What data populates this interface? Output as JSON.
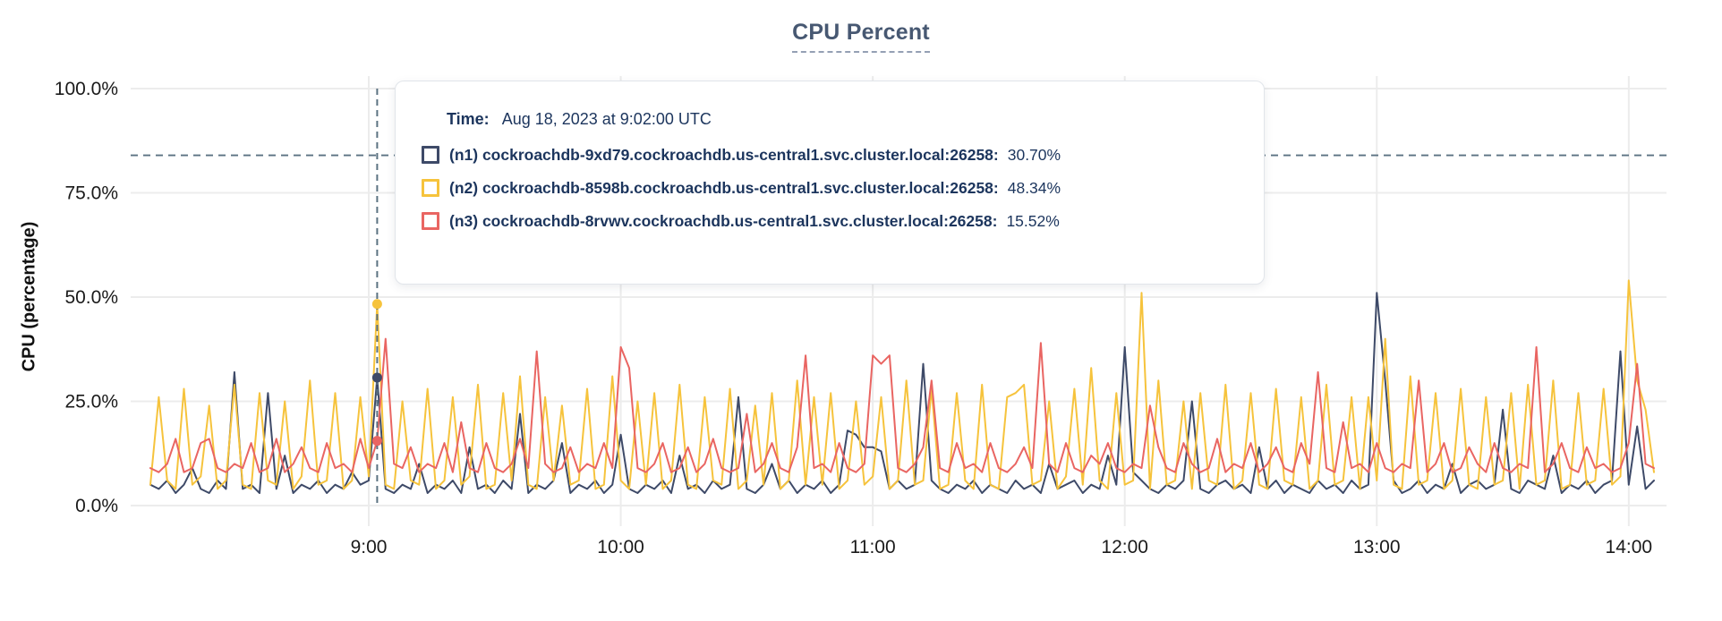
{
  "page": {
    "title": "CPU Percent"
  },
  "tooltip": {
    "time_label": "Time:",
    "time_value": "Aug 18, 2023 at 9:02:00 UTC",
    "rows": [
      {
        "label": "(n1) cockroachdb-9xd79.cockroachdb.us-central1.svc.cluster.local:26258:",
        "value": "30.70%"
      },
      {
        "label": "(n2) cockroachdb-8598b.cockroachdb.us-central1.svc.cluster.local:26258:",
        "value": "48.34%"
      },
      {
        "label": "(n3) cockroachdb-8rvwv.cockroachdb.us-central1.svc.cluster.local:26258:",
        "value": "15.52%"
      }
    ]
  },
  "colors": {
    "title": "#475872",
    "tooltip_text": "#1c355d",
    "grid": "#ececec",
    "dashed_guides": "#5b7282",
    "axis_text": "#1a1a1a",
    "series_n1": "#3e4a68",
    "series_n2": "#f6c33c",
    "series_n3": "#e96562"
  },
  "chart_data": {
    "type": "line",
    "title": "CPU Percent",
    "xlabel": "",
    "ylabel": "CPU (percentage)",
    "ylim": [
      0,
      100
    ],
    "grid": true,
    "legend_position": "tooltip-overlay",
    "yticks": [
      {
        "value": 0,
        "label": "0.0%"
      },
      {
        "value": 25,
        "label": "25.0%"
      },
      {
        "value": 50,
        "label": "50.0%"
      },
      {
        "value": 75,
        "label": "75.0%"
      },
      {
        "value": 100,
        "label": "100.0%"
      }
    ],
    "xticks": [
      {
        "minute": 540,
        "label": "9:00"
      },
      {
        "minute": 600,
        "label": "10:00"
      },
      {
        "minute": 660,
        "label": "11:00"
      },
      {
        "minute": 720,
        "label": "12:00"
      },
      {
        "minute": 780,
        "label": "13:00"
      },
      {
        "minute": 840,
        "label": "14:00"
      }
    ],
    "xlim_minutes": [
      488,
      846
    ],
    "x_start_minute": 488,
    "x_step_minutes": 2,
    "threshold_percent": 84,
    "hover": {
      "minute": 542,
      "time": "Aug 18, 2023 at 9:02:00 UTC",
      "values": [
        30.7,
        48.34,
        15.52
      ]
    },
    "series": [
      {
        "name": "(n1) cockroachdb-9xd79.cockroachdb.us-central1.svc.cluster.local:26258",
        "color": "#3e4a68",
        "values": [
          5,
          4,
          6,
          3,
          5,
          9,
          4,
          3,
          6,
          4,
          32,
          4,
          5,
          3,
          27,
          4,
          12,
          3,
          5,
          4,
          6,
          3,
          5,
          4,
          8,
          5,
          6,
          30.7,
          4,
          3,
          5,
          4,
          10,
          3,
          5,
          4,
          6,
          3,
          14,
          4,
          5,
          3,
          6,
          4,
          22,
          3,
          5,
          4,
          6,
          15,
          3,
          5,
          4,
          6,
          3,
          5,
          17,
          4,
          3,
          5,
          4,
          6,
          3,
          12,
          4,
          5,
          3,
          6,
          4,
          5,
          26,
          4,
          3,
          5,
          10,
          4,
          6,
          3,
          5,
          4,
          6,
          3,
          5,
          18,
          17,
          14,
          14,
          13,
          4,
          6,
          4,
          5,
          34,
          6,
          4,
          3,
          5,
          4,
          6,
          3,
          5,
          4,
          3,
          6,
          4,
          5,
          3,
          10,
          4,
          5,
          6,
          3,
          5,
          4,
          12,
          5,
          38,
          8,
          6,
          4,
          3,
          5,
          4,
          6,
          25,
          4,
          3,
          5,
          6,
          4,
          5,
          3,
          14,
          4,
          6,
          3,
          5,
          4,
          3,
          6,
          4,
          5,
          3,
          6,
          4,
          5,
          51,
          30,
          6,
          3,
          4,
          6,
          3,
          5,
          4,
          10,
          3,
          5,
          6,
          4,
          5,
          23,
          4,
          3,
          6,
          5,
          4,
          12,
          3,
          5,
          4,
          6,
          3,
          5,
          6,
          37,
          5,
          19,
          4,
          6
        ]
      },
      {
        "name": "(n2) cockroachdb-8598b.cockroachdb.us-central1.svc.cluster.local:26258",
        "color": "#f6c33c",
        "values": [
          5,
          26,
          6,
          4,
          28,
          5,
          7,
          24,
          4,
          6,
          29,
          5,
          4,
          27,
          6,
          5,
          25,
          4,
          7,
          30,
          5,
          6,
          27,
          4,
          6,
          26,
          7,
          48.34,
          5,
          4,
          25,
          6,
          5,
          28,
          4,
          6,
          26,
          5,
          7,
          29,
          4,
          5,
          27,
          6,
          31,
          5,
          4,
          26,
          6,
          24,
          5,
          6,
          28,
          4,
          5,
          31,
          6,
          4,
          25,
          5,
          27,
          4,
          6,
          29,
          5,
          4,
          26,
          6,
          5,
          28,
          4,
          6,
          24,
          5,
          27,
          4,
          6,
          30,
          5,
          26,
          5,
          27,
          4,
          6,
          25,
          5,
          7,
          26,
          4,
          6,
          30,
          5,
          6,
          28,
          4,
          5,
          27,
          6,
          4,
          29,
          5,
          4,
          26,
          27,
          29,
          5,
          6,
          25,
          4,
          7,
          28,
          5,
          33,
          6,
          4,
          27,
          5,
          6,
          51,
          4,
          30,
          5,
          6,
          25,
          4,
          27,
          6,
          5,
          29,
          4,
          6,
          27,
          5,
          4,
          28,
          6,
          5,
          26,
          4,
          6,
          29,
          5,
          6,
          26,
          4,
          26,
          6,
          40,
          5,
          4,
          31,
          5,
          6,
          27,
          4,
          6,
          28,
          5,
          4,
          26,
          5,
          6,
          27,
          4,
          29,
          5,
          6,
          30,
          4,
          5,
          27,
          5,
          6,
          28,
          5,
          7,
          54,
          30,
          23,
          8
        ]
      },
      {
        "name": "(n3) cockroachdb-8rvwv.cockroachdb.us-central1.svc.cluster.local:26258",
        "color": "#e96562",
        "values": [
          9,
          8,
          10,
          16,
          8,
          9,
          15,
          16,
          9,
          8,
          10,
          9,
          15,
          8,
          9,
          16,
          8,
          10,
          14,
          9,
          8,
          15,
          9,
          10,
          8,
          16,
          9,
          15.52,
          40,
          10,
          9,
          14,
          8,
          10,
          9,
          15,
          8,
          20,
          9,
          8,
          15,
          9,
          8,
          10,
          16,
          9,
          37,
          10,
          8,
          9,
          14,
          8,
          10,
          9,
          15,
          9,
          38,
          33,
          9,
          8,
          10,
          15,
          8,
          9,
          14,
          8,
          10,
          16,
          9,
          8,
          9,
          22,
          8,
          10,
          15,
          9,
          8,
          14,
          36,
          9,
          10,
          8,
          15,
          9,
          8,
          10,
          36,
          34,
          36,
          9,
          8,
          10,
          14,
          30,
          9,
          8,
          15,
          9,
          10,
          8,
          15,
          9,
          8,
          10,
          14,
          9,
          39,
          10,
          8,
          15,
          9,
          8,
          12,
          10,
          15,
          9,
          8,
          10,
          9,
          24,
          14,
          9,
          8,
          15,
          10,
          8,
          9,
          16,
          8,
          10,
          9,
          15,
          8,
          10,
          14,
          9,
          8,
          15,
          10,
          32,
          9,
          8,
          20,
          9,
          10,
          8,
          15,
          9,
          8,
          10,
          9,
          30,
          8,
          10,
          15,
          8,
          9,
          14,
          10,
          8,
          15,
          9,
          8,
          10,
          9,
          38,
          8,
          10,
          15,
          9,
          8,
          14,
          9,
          10,
          8,
          9,
          15,
          34,
          10,
          9
        ]
      }
    ]
  }
}
